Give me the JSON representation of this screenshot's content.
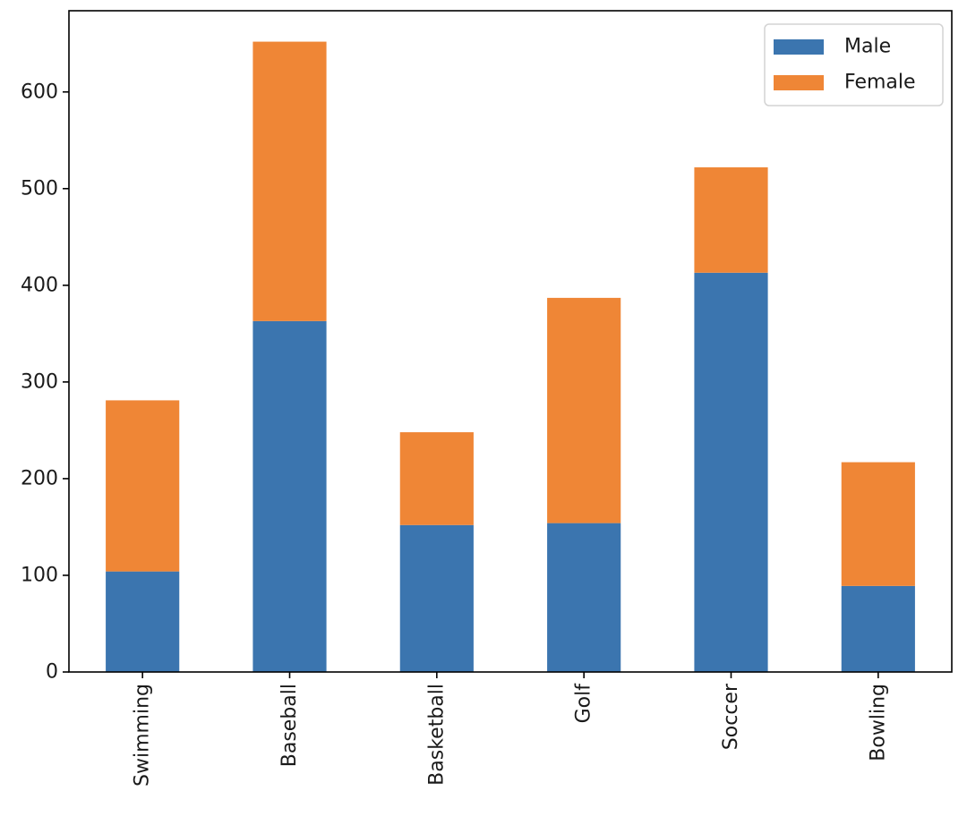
{
  "chart_data": {
    "type": "bar",
    "stacked": true,
    "categories": [
      "Swimming",
      "Baseball",
      "Basketball",
      "Golf",
      "Soccer",
      "Bowling"
    ],
    "series": [
      {
        "name": "Male",
        "values": [
          104,
          363,
          152,
          154,
          413,
          89
        ],
        "color": "#3b75af"
      },
      {
        "name": "Female",
        "values": [
          177,
          289,
          96,
          233,
          109,
          128
        ],
        "color": "#ef8636"
      }
    ],
    "title": "",
    "xlabel": "",
    "ylabel": "",
    "ylim": [
      0,
      684
    ],
    "yticks": [
      0,
      100,
      200,
      300,
      400,
      500,
      600
    ],
    "grid": false,
    "legend_position": "top-right"
  }
}
